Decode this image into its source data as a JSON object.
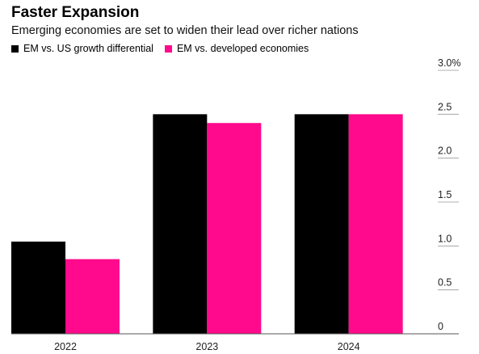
{
  "chart_data": {
    "type": "bar",
    "title": "Faster Expansion",
    "subtitle": "Emerging economies are set to widen their lead over richer nations",
    "categories": [
      "2022",
      "2023",
      "2024"
    ],
    "series": [
      {
        "name": "EM vs. US growth differential",
        "color": "#000000",
        "values": [
          1.05,
          2.5,
          2.5
        ]
      },
      {
        "name": "EM vs. developed economies",
        "color": "#ff0a8c",
        "values": [
          0.85,
          2.4,
          2.5
        ]
      }
    ],
    "ylim": [
      0,
      3.0
    ],
    "yticks": [
      0,
      0.5,
      1.0,
      1.5,
      2.0,
      2.5,
      3.0
    ],
    "ytick_labels": [
      "0",
      "0.5",
      "1.0",
      "1.5",
      "2.0",
      "2.5",
      "3.0%"
    ],
    "y_axis_position": "right",
    "legend_position": "top-left",
    "grid": false
  }
}
